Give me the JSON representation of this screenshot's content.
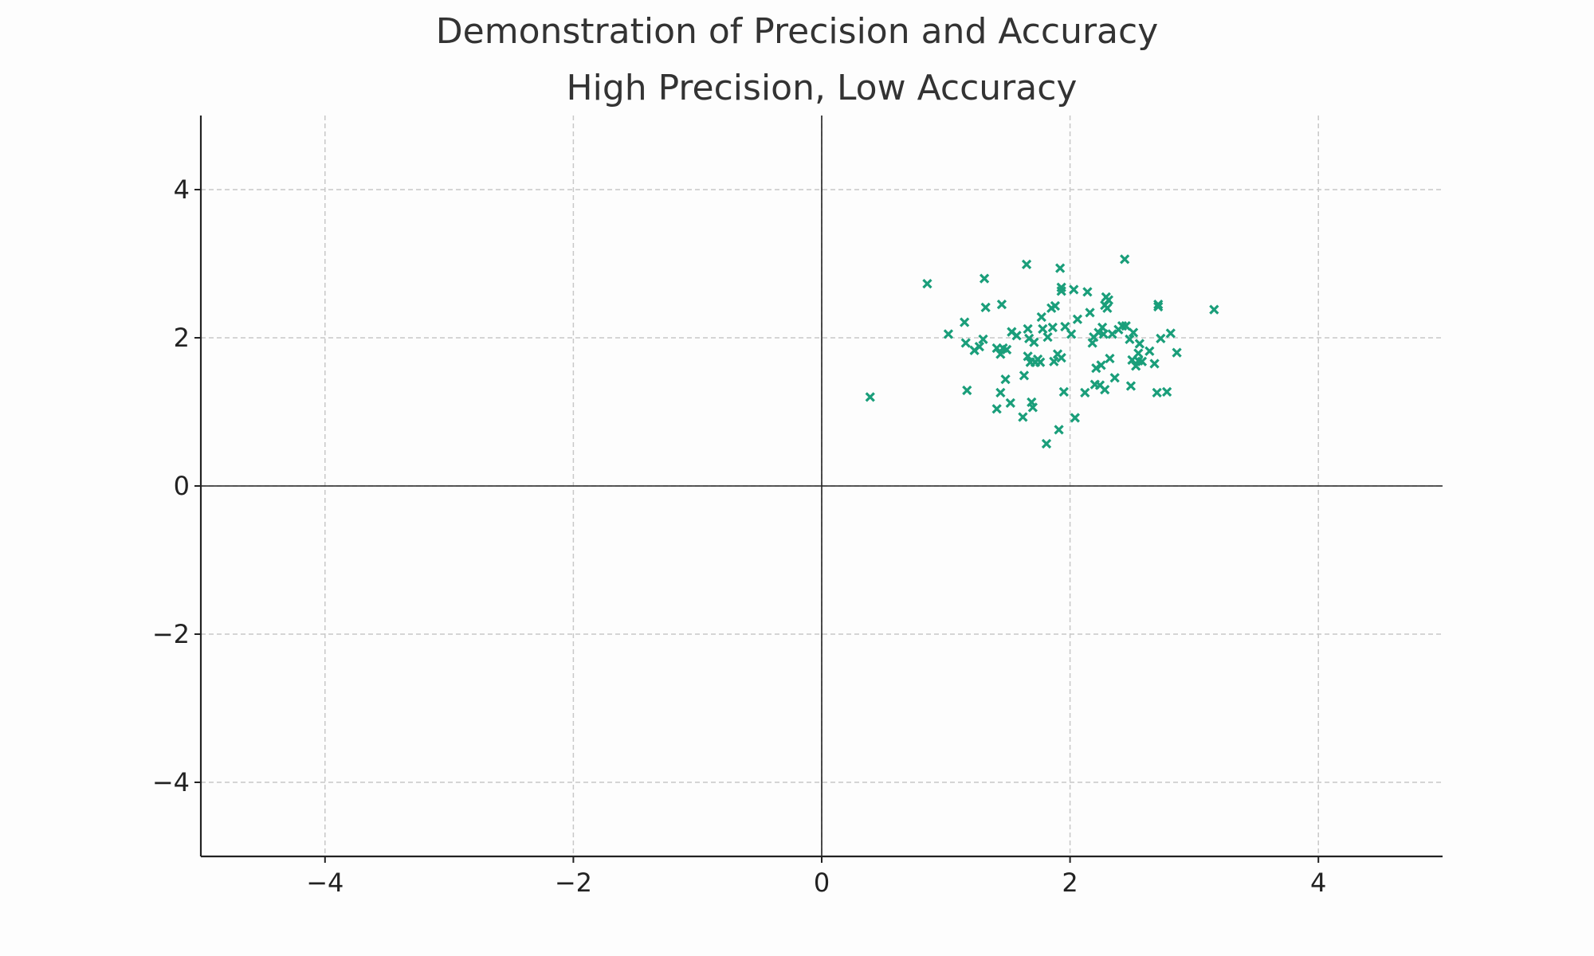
{
  "figure": {
    "suptitle": "Demonstration of Precision and Accuracy"
  },
  "chart_data": {
    "type": "scatter",
    "title": "High Precision, Low Accuracy",
    "xlabel": "",
    "ylabel": "",
    "xlim": [
      -5,
      5
    ],
    "ylim": [
      -5,
      5
    ],
    "xticks": [
      -4,
      -2,
      0,
      2,
      4
    ],
    "yticks": [
      -4,
      -2,
      0,
      2,
      4
    ],
    "xtick_labels": [
      "−4",
      "−2",
      "0",
      "2",
      "4"
    ],
    "ytick_labels": [
      "−4",
      "−2",
      "0",
      "2",
      "4"
    ],
    "grid": true,
    "reference_lines": {
      "x": 0,
      "y": 0
    },
    "marker": "x",
    "color": "#1a9e7a",
    "series": [
      {
        "points": [
          [
            0.39,
            1.2
          ],
          [
            0.85,
            2.73
          ],
          [
            1.02,
            2.05
          ],
          [
            1.15,
            2.21
          ],
          [
            1.16,
            1.93
          ],
          [
            1.17,
            1.29
          ],
          [
            1.23,
            1.83
          ],
          [
            1.27,
            1.88
          ],
          [
            1.3,
            1.98
          ],
          [
            1.31,
            2.8
          ],
          [
            1.32,
            2.41
          ],
          [
            1.41,
            1.04
          ],
          [
            1.41,
            1.86
          ],
          [
            1.44,
            1.78
          ],
          [
            1.44,
            1.26
          ],
          [
            1.45,
            2.45
          ],
          [
            1.46,
            1.86
          ],
          [
            1.48,
            1.44
          ],
          [
            1.49,
            1.84
          ],
          [
            1.52,
            1.12
          ],
          [
            1.53,
            2.08
          ],
          [
            1.57,
            2.03
          ],
          [
            1.62,
            0.93
          ],
          [
            1.63,
            1.49
          ],
          [
            1.65,
            2.99
          ],
          [
            1.66,
            2.12
          ],
          [
            1.66,
            1.75
          ],
          [
            1.67,
            1.99
          ],
          [
            1.68,
            1.67
          ],
          [
            1.69,
            1.13
          ],
          [
            1.7,
            1.06
          ],
          [
            1.71,
            1.94
          ],
          [
            1.72,
            1.67
          ],
          [
            1.74,
            1.71
          ],
          [
            1.76,
            1.67
          ],
          [
            1.77,
            2.28
          ],
          [
            1.78,
            2.12
          ],
          [
            1.81,
            0.57
          ],
          [
            1.82,
            2.01
          ],
          [
            1.85,
            2.4
          ],
          [
            1.86,
            2.14
          ],
          [
            1.87,
            1.68
          ],
          [
            1.88,
            2.43
          ],
          [
            1.9,
            1.78
          ],
          [
            1.91,
            0.76
          ],
          [
            1.92,
            2.94
          ],
          [
            1.93,
            2.63
          ],
          [
            1.93,
            2.68
          ],
          [
            1.93,
            1.73
          ],
          [
            1.95,
            1.27
          ],
          [
            1.96,
            2.15
          ],
          [
            2.01,
            2.05
          ],
          [
            2.03,
            2.65
          ],
          [
            2.04,
            0.92
          ],
          [
            2.06,
            2.25
          ],
          [
            2.12,
            1.26
          ],
          [
            2.14,
            2.62
          ],
          [
            2.16,
            2.34
          ],
          [
            2.18,
            1.93
          ],
          [
            2.19,
            2.01
          ],
          [
            2.2,
            1.37
          ],
          [
            2.21,
            1.59
          ],
          [
            2.23,
            2.07
          ],
          [
            2.24,
            1.36
          ],
          [
            2.25,
            1.63
          ],
          [
            2.26,
            2.14
          ],
          [
            2.27,
            2.05
          ],
          [
            2.28,
            2.44
          ],
          [
            2.28,
            1.3
          ],
          [
            2.29,
            2.55
          ],
          [
            2.3,
            2.4
          ],
          [
            2.31,
            2.51
          ],
          [
            2.32,
            1.72
          ],
          [
            2.34,
            2.05
          ],
          [
            2.36,
            1.46
          ],
          [
            2.39,
            2.11
          ],
          [
            2.42,
            2.16
          ],
          [
            2.44,
            3.06
          ],
          [
            2.45,
            2.16
          ],
          [
            2.48,
            1.98
          ],
          [
            2.49,
            1.35
          ],
          [
            2.5,
            1.7
          ],
          [
            2.51,
            2.07
          ],
          [
            2.53,
            1.62
          ],
          [
            2.55,
            1.69
          ],
          [
            2.55,
            1.79
          ],
          [
            2.56,
            1.92
          ],
          [
            2.58,
            1.68
          ],
          [
            2.64,
            1.82
          ],
          [
            2.68,
            1.65
          ],
          [
            2.7,
            1.26
          ],
          [
            2.71,
            2.45
          ],
          [
            2.71,
            2.42
          ],
          [
            2.73,
            1.99
          ],
          [
            2.78,
            1.27
          ],
          [
            2.81,
            2.06
          ],
          [
            2.86,
            1.8
          ],
          [
            3.16,
            2.38
          ]
        ]
      }
    ]
  }
}
